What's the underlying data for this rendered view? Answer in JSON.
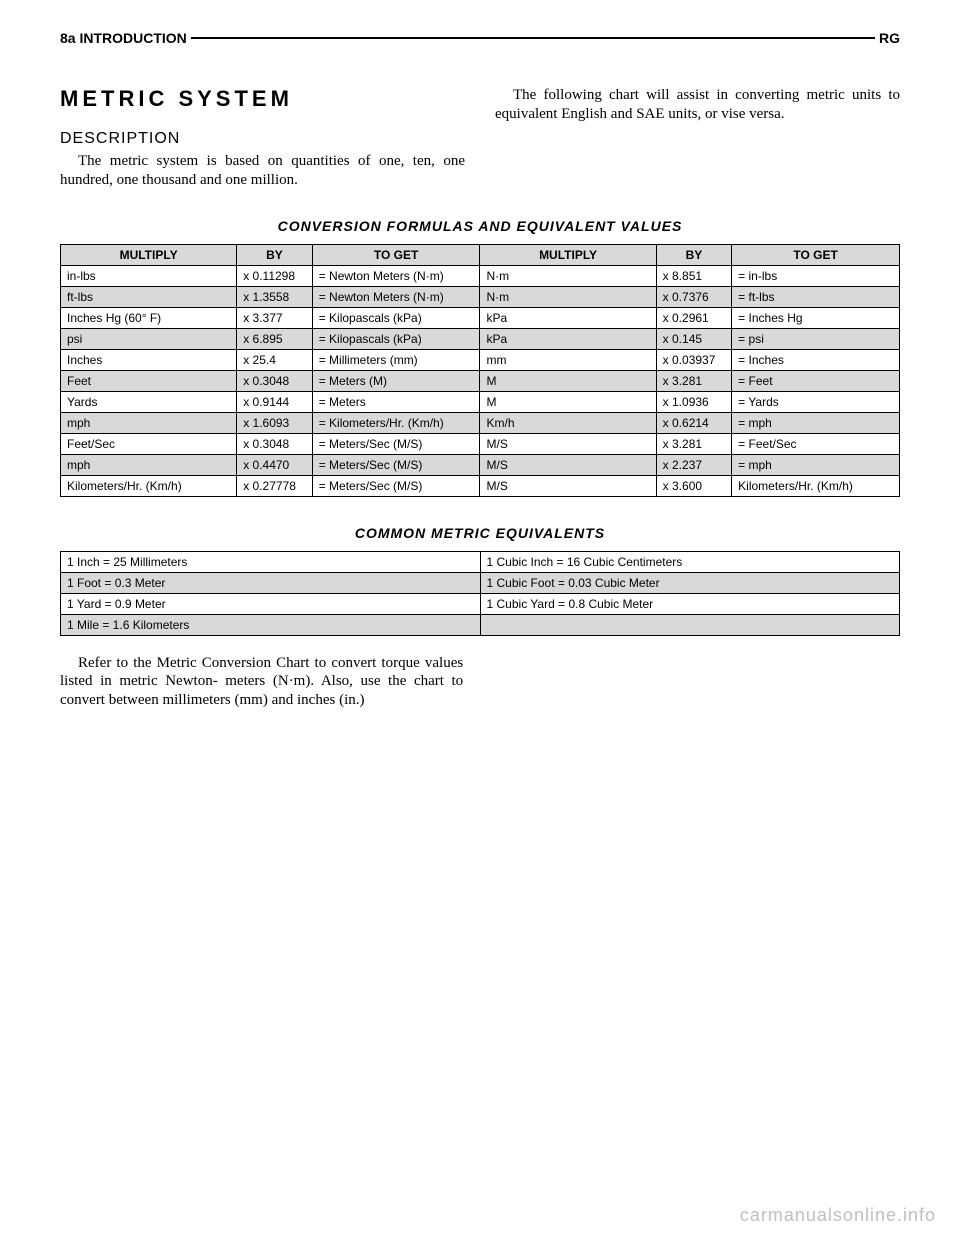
{
  "header": {
    "page_number": "8a",
    "section": "INTRODUCTION",
    "right": "RG"
  },
  "title": "METRIC SYSTEM",
  "subheading": "DESCRIPTION",
  "desc_p1": "The metric system is based on quantities of one, ten, one hundred, one thousand and one million.",
  "desc_p2": "The following chart will assist in converting metric units to equivalent English and SAE units, or vise versa.",
  "table1_title": "CONVERSION FORMULAS AND EQUIVALENT VALUES",
  "conversion_table": {
    "headers": [
      "MULTIPLY",
      "BY",
      "TO GET",
      "MULTIPLY",
      "BY",
      "TO GET"
    ],
    "rows": [
      [
        "in-lbs",
        "x 0.11298",
        "= Newton Meters (N·m)",
        "N·m",
        "x 8.851",
        "= in-lbs"
      ],
      [
        "ft-lbs",
        "x 1.3558",
        "= Newton Meters (N·m)",
        "N·m",
        "x 0.7376",
        "= ft-lbs"
      ],
      [
        "Inches Hg (60° F)",
        "x 3.377",
        "= Kilopascals (kPa)",
        "kPa",
        "x 0.2961",
        "= Inches Hg"
      ],
      [
        "psi",
        "x 6.895",
        "= Kilopascals (kPa)",
        "kPa",
        "x 0.145",
        "= psi"
      ],
      [
        "Inches",
        "x 25.4",
        "= Millimeters (mm)",
        "mm",
        "x 0.03937",
        "= Inches"
      ],
      [
        "Feet",
        "x 0.3048",
        "= Meters (M)",
        "M",
        "x 3.281",
        "= Feet"
      ],
      [
        "Yards",
        "x 0.9144",
        "= Meters",
        "M",
        "x 1.0936",
        "= Yards"
      ],
      [
        "mph",
        "x 1.6093",
        "= Kilometers/Hr. (Km/h)",
        "Km/h",
        "x 0.6214",
        "= mph"
      ],
      [
        "Feet/Sec",
        "x 0.3048",
        "= Meters/Sec (M/S)",
        "M/S",
        "x 3.281",
        "= Feet/Sec"
      ],
      [
        "mph",
        "x 0.4470",
        "= Meters/Sec (M/S)",
        "M/S",
        "x 2.237",
        "= mph"
      ],
      [
        "Kilometers/Hr. (Km/h)",
        "x 0.27778",
        "= Meters/Sec (M/S)",
        "M/S",
        "x 3.600",
        "Kilometers/Hr. (Km/h)"
      ]
    ],
    "col_widths": [
      "21%",
      "9%",
      "20%",
      "21%",
      "9%",
      "20%"
    ],
    "shade_color": "#d9d9d9"
  },
  "table2_title": "COMMON METRIC EQUIVALENTS",
  "equiv_table": {
    "rows": [
      [
        "1 Inch = 25 Millimeters",
        "1 Cubic Inch = 16 Cubic Centimeters"
      ],
      [
        "1 Foot = 0.3 Meter",
        "1 Cubic Foot = 0.03 Cubic Meter"
      ],
      [
        "1 Yard = 0.9 Meter",
        "1 Cubic Yard = 0.8 Cubic Meter"
      ],
      [
        "1 Mile = 1.6 Kilometers",
        ""
      ]
    ]
  },
  "footer_note": "Refer to the Metric Conversion Chart to convert torque values listed in metric Newton- meters (N·m). Also, use the chart to convert between millimeters (mm) and inches (in.)",
  "watermark": "carmanualsonline.info"
}
